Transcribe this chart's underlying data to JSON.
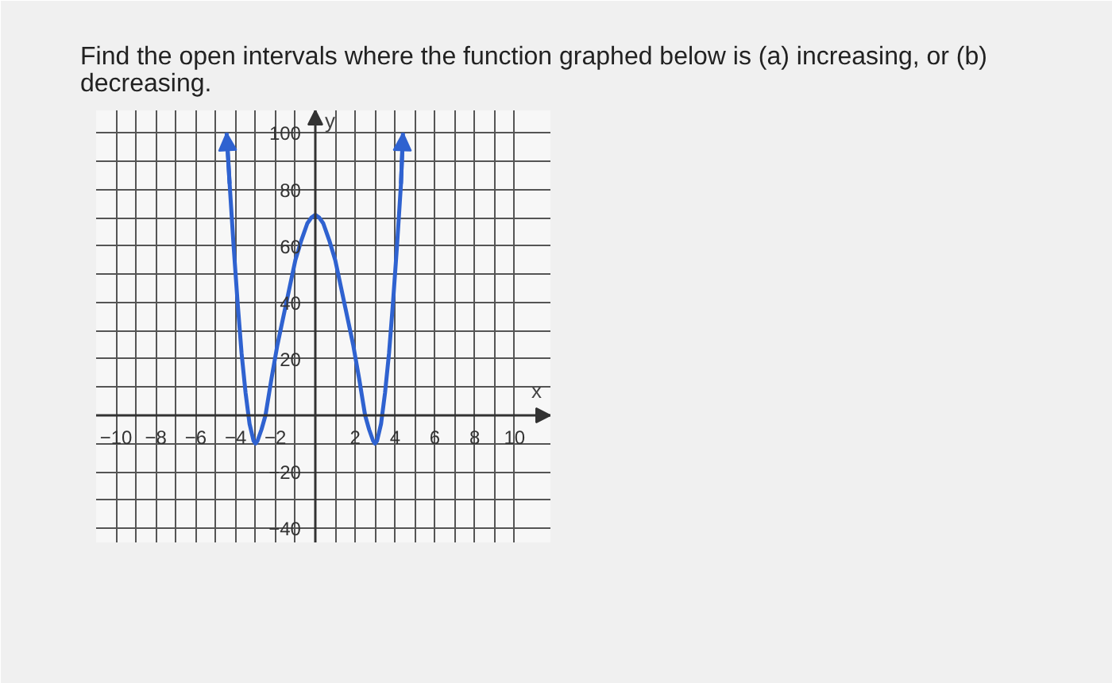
{
  "chart_data": {
    "type": "line",
    "title": "Find the open intervals where the function graphed below is (a) increasing, or (b) decreasing.",
    "xlabel": "x",
    "ylabel": "y",
    "series": [
      {
        "color": "#2f62d0",
        "x": [
          -4.45,
          -4.3,
          -4.1,
          -3.9,
          -3.7,
          -3.5,
          -3.3,
          -3.1,
          -3.0,
          -2.9,
          -2.7,
          -2.5,
          -2.2,
          -1.9,
          -1.6,
          -1.3,
          -1.0,
          -0.7,
          -0.4,
          -0.2,
          0,
          0.2,
          0.4,
          0.7,
          1.0,
          1.3,
          1.6,
          1.9,
          2.2,
          2.5,
          2.7,
          2.9,
          3.0,
          3.1,
          3.3,
          3.5,
          3.7,
          3.9,
          4.1,
          4.3,
          4.4
        ],
        "values": [
          100,
          82,
          60,
          40,
          22,
          8,
          -3,
          -9,
          -10,
          -9,
          -5,
          0,
          13,
          25,
          35,
          45,
          55,
          62,
          68,
          70,
          71,
          70,
          68,
          62,
          55,
          45,
          35,
          25,
          13,
          0,
          -5,
          -9,
          -10,
          -9,
          -3,
          8,
          22,
          40,
          60,
          82,
          100
        ]
      }
    ],
    "xlim": [
      -11,
      11.8
    ],
    "ylim": [
      -45,
      108
    ],
    "xticks": [
      -10,
      {
        "value": -9,
        "label": null
      },
      -8,
      {
        "value": -7,
        "label": null
      },
      -6,
      {
        "value": -5,
        "label": null
      },
      -4,
      {
        "value": -3,
        "label": null
      },
      -2,
      {
        "value": -1,
        "label": null
      },
      {
        "value": 0,
        "label": null
      },
      {
        "value": 1,
        "label": null
      },
      2,
      {
        "value": 3,
        "label": null
      },
      4,
      {
        "value": 5,
        "label": null
      },
      6,
      {
        "value": 7,
        "label": null
      },
      8,
      {
        "value": 9,
        "label": null
      },
      10
    ],
    "yticks": [
      -40,
      {
        "value": -30,
        "label": null
      },
      -20,
      {
        "value": -10,
        "label": null
      },
      {
        "value": 0,
        "label": null
      },
      {
        "value": 10,
        "label": null
      },
      20,
      {
        "value": 30,
        "label": null
      },
      40,
      {
        "value": 50,
        "label": null
      },
      60,
      {
        "value": 70,
        "label": null
      },
      80,
      {
        "value": 90,
        "label": null
      },
      100
    ],
    "grid": true,
    "line_style": "solid"
  }
}
